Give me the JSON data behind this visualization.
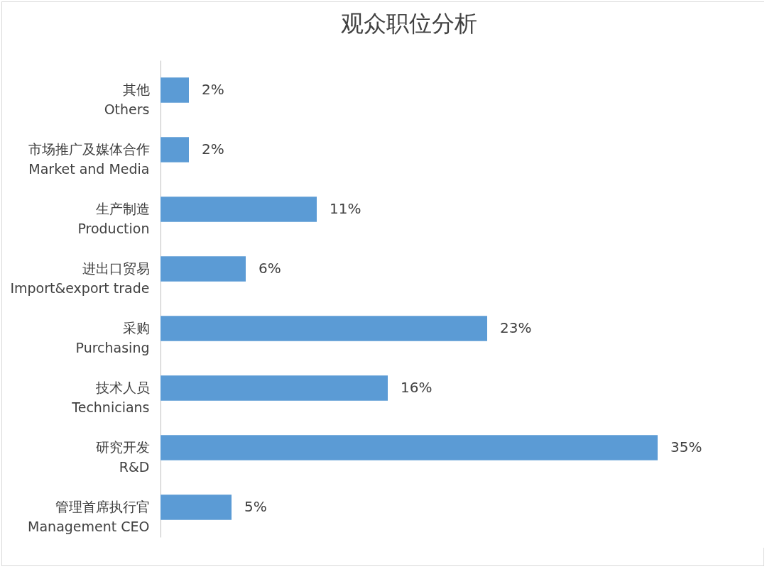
{
  "chart_data": {
    "type": "bar",
    "orientation": "horizontal",
    "title": "观众职位分析",
    "categories": [
      "其他\nOthers",
      "市场推广及媒体合作\nMarket and Media",
      "生产制造\nProduction",
      "进出口贸易\nImport&export trade",
      "采购\nPurchasing",
      "技术人员\nTechnicians",
      "研究开发\nR&D",
      "管理首席执行官\nManagement CEO"
    ],
    "values": [
      2,
      2,
      11,
      6,
      23,
      16,
      35,
      5
    ],
    "value_labels": [
      "2%",
      "2%",
      "11%",
      "6%",
      "23%",
      "16%",
      "35%",
      "5%"
    ],
    "color": "#5b9bd5",
    "tick_labels": "y"
  }
}
